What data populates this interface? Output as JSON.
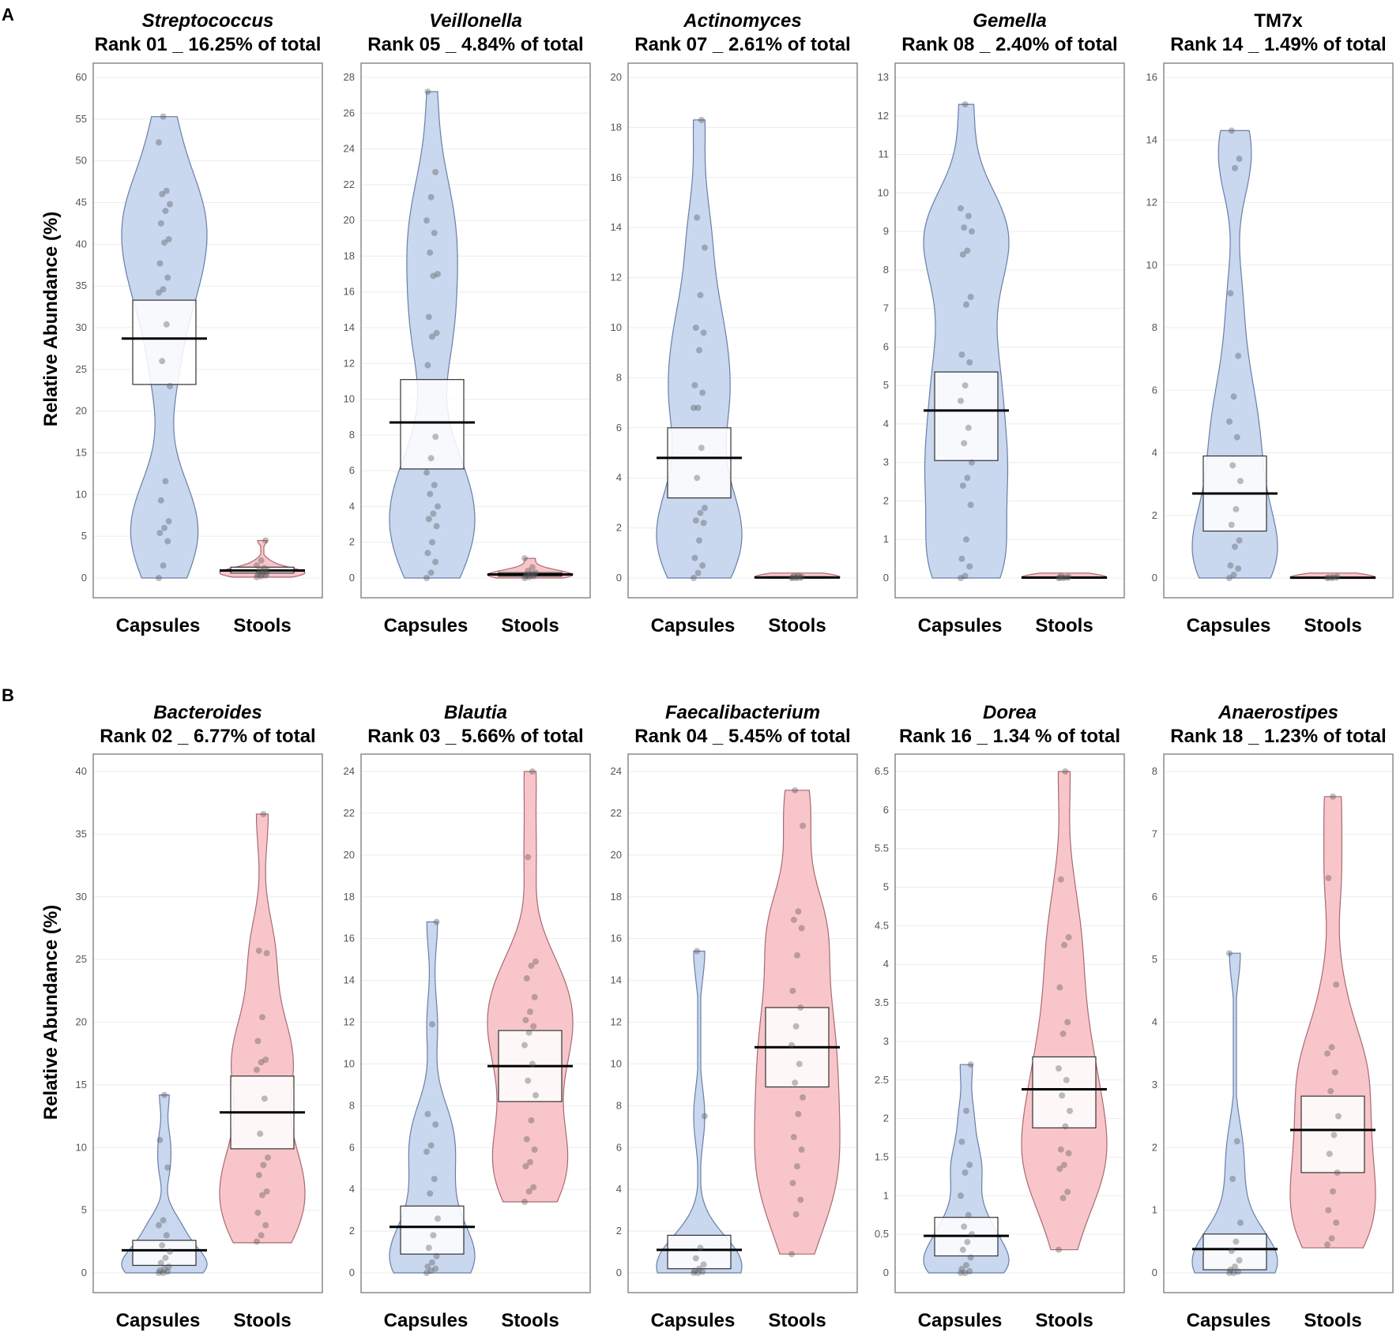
{
  "colors": {
    "capsules_fill": "#c6d5ee",
    "capsules_stroke": "#6a7fa8",
    "stools_fill": "#f8c3c7",
    "stools_stroke": "#a86a72",
    "box_fill": "#ffffff",
    "grid": "#ececec",
    "frame": "#8a8a8a",
    "dot": "#555555"
  },
  "y_axis_label": "Relative Abundance (%)",
  "chart_data": [
    {
      "panel": "A",
      "type": "violin-box",
      "genus": "Streptococcus",
      "italic": true,
      "subtitle": "Rank 01 _ 16.25% of total",
      "ylim": [
        0,
        60
      ],
      "ticks": [
        0,
        5,
        10,
        15,
        20,
        25,
        30,
        35,
        40,
        45,
        50,
        55,
        60
      ],
      "categories": [
        "Capsules",
        "Stools"
      ],
      "series": [
        {
          "name": "Capsules",
          "min": 0,
          "max": 55.3,
          "q1": 23.2,
          "median": 28.7,
          "q3": 33.3,
          "points": [
            0,
            1.5,
            4.4,
            5.4,
            6.0,
            6.8,
            9.3,
            11.6,
            23,
            26,
            30.4,
            34.2,
            34.6,
            36.0,
            37.7,
            40.2,
            40.6,
            42.5,
            44.0,
            44.8,
            46.0,
            46.4,
            52.2,
            55.3
          ]
        },
        {
          "name": "Stools",
          "min": 0.1,
          "max": 4.5,
          "q1": 0.6,
          "median": 0.9,
          "q3": 1.3,
          "points": [
            0.1,
            0.2,
            0.3,
            0.4,
            0.5,
            0.6,
            0.7,
            0.8,
            0.9,
            1.0,
            1.2,
            1.5,
            2.1,
            4.5
          ]
        }
      ]
    },
    {
      "panel": "A",
      "type": "violin-box",
      "genus": "Veillonella",
      "italic": true,
      "subtitle": "Rank 05 _ 4.84% of total",
      "ylim": [
        0,
        28
      ],
      "ticks": [
        0,
        2,
        4,
        6,
        8,
        10,
        12,
        14,
        16,
        18,
        20,
        22,
        24,
        26,
        28
      ],
      "categories": [
        "Capsules",
        "Stools"
      ],
      "series": [
        {
          "name": "Capsules",
          "min": 0,
          "max": 27.2,
          "q1": 6.1,
          "median": 8.7,
          "q3": 11.1,
          "points": [
            0,
            0.3,
            0.9,
            1.4,
            2.0,
            2.9,
            3.3,
            3.6,
            4.0,
            4.7,
            5.2,
            5.9,
            6.7,
            7.9,
            11.9,
            13.5,
            13.7,
            14.6,
            16.9,
            17.0,
            18.2,
            19.3,
            20.0,
            21.3,
            22.7,
            27.2
          ]
        },
        {
          "name": "Stools",
          "min": 0,
          "max": 1.1,
          "q1": 0.1,
          "median": 0.2,
          "q3": 0.3,
          "points": [
            0,
            0.05,
            0.1,
            0.1,
            0.15,
            0.2,
            0.2,
            0.25,
            0.3,
            0.4,
            0.6,
            1.1
          ]
        }
      ]
    },
    {
      "panel": "A",
      "type": "violin-box",
      "genus": "Actinomyces",
      "italic": true,
      "subtitle": "Rank 07 _ 2.61% of total",
      "ylim": [
        0,
        20
      ],
      "ticks": [
        0,
        2,
        4,
        6,
        8,
        10,
        12,
        14,
        16,
        18,
        20
      ],
      "categories": [
        "Capsules",
        "Stools"
      ],
      "series": [
        {
          "name": "Capsules",
          "min": 0,
          "max": 18.3,
          "q1": 3.2,
          "median": 4.8,
          "q3": 6.0,
          "points": [
            0,
            0.2,
            0.5,
            0.8,
            1.5,
            2.2,
            2.3,
            2.6,
            2.8,
            4.0,
            5.2,
            6.8,
            6.8,
            7.4,
            7.7,
            9.1,
            9.8,
            10.0,
            11.3,
            13.2,
            14.4,
            18.3
          ]
        },
        {
          "name": "Stools",
          "min": 0,
          "max": 0.1,
          "q1": 0,
          "median": 0.02,
          "q3": 0.05,
          "points": [
            0,
            0,
            0.01,
            0.02,
            0.03,
            0.05,
            0.08,
            0.1
          ]
        }
      ]
    },
    {
      "panel": "A",
      "type": "violin-box",
      "genus": "Gemella",
      "italic": true,
      "subtitle": "Rank 08 _ 2.40% of total",
      "ylim": [
        0,
        13
      ],
      "ticks": [
        0,
        1,
        2,
        3,
        4,
        5,
        6,
        7,
        8,
        9,
        10,
        11,
        12,
        13
      ],
      "categories": [
        "Capsules",
        "Stools"
      ],
      "series": [
        {
          "name": "Capsules",
          "min": 0,
          "max": 12.3,
          "q1": 3.05,
          "median": 4.35,
          "q3": 5.35,
          "points": [
            0,
            0.05,
            0.3,
            0.5,
            1.0,
            1.9,
            2.4,
            2.6,
            3.0,
            3.5,
            3.9,
            4.6,
            5.0,
            5.6,
            5.8,
            7.1,
            7.3,
            8.4,
            8.5,
            9.0,
            9.1,
            9.4,
            9.6,
            12.3
          ]
        },
        {
          "name": "Stools",
          "min": 0,
          "max": 0.05,
          "q1": 0,
          "median": 0.01,
          "q3": 0.02,
          "points": [
            0,
            0,
            0.01,
            0.01,
            0.02,
            0.03,
            0.05
          ]
        }
      ]
    },
    {
      "panel": "A",
      "type": "violin-box",
      "genus": "TM7x",
      "italic": false,
      "subtitle": "Rank 14 _ 1.49% of total",
      "ylim": [
        0,
        16
      ],
      "ticks": [
        0,
        2,
        4,
        6,
        8,
        10,
        12,
        14,
        16
      ],
      "categories": [
        "Capsules",
        "Stools"
      ],
      "series": [
        {
          "name": "Capsules",
          "min": 0,
          "max": 14.3,
          "q1": 1.5,
          "median": 2.7,
          "q3": 3.9,
          "points": [
            0,
            0.1,
            0.3,
            0.4,
            1.0,
            1.2,
            1.7,
            2.2,
            3.1,
            3.6,
            4.5,
            5.0,
            5.8,
            7.1,
            9.1,
            13.1,
            13.4,
            14.3
          ]
        },
        {
          "name": "Stools",
          "min": 0,
          "max": 0.05,
          "q1": 0,
          "median": 0.01,
          "q3": 0.02,
          "points": [
            0,
            0,
            0.01,
            0.02,
            0.03,
            0.05
          ]
        }
      ]
    },
    {
      "panel": "B",
      "type": "violin-box",
      "genus": "Bacteroides",
      "italic": true,
      "subtitle": "Rank 02 _ 6.77% of total",
      "ylim": [
        0,
        40
      ],
      "ticks": [
        0,
        5,
        10,
        15,
        20,
        25,
        30,
        35,
        40
      ],
      "categories": [
        "Capsules",
        "Stools"
      ],
      "series": [
        {
          "name": "Capsules",
          "min": 0,
          "max": 14.2,
          "q1": 0.6,
          "median": 1.8,
          "q3": 2.6,
          "points": [
            0,
            0,
            0.1,
            0.2,
            0.3,
            0.5,
            0.8,
            1.2,
            1.7,
            2.2,
            3.0,
            3.8,
            4.2,
            8.4,
            10.6,
            14.2
          ]
        },
        {
          "name": "Stools",
          "min": 2.4,
          "max": 36.6,
          "q1": 9.9,
          "median": 12.8,
          "q3": 15.7,
          "points": [
            2.5,
            3.0,
            3.8,
            4.8,
            6.2,
            6.5,
            7.8,
            8.6,
            9.2,
            11.1,
            13.9,
            16.2,
            16.8,
            17.0,
            18.5,
            20.4,
            25.5,
            25.7,
            36.6
          ]
        }
      ]
    },
    {
      "panel": "B",
      "type": "violin-box",
      "genus": "Blautia",
      "italic": true,
      "subtitle": "Rank 03 _ 5.66% of total",
      "ylim": [
        0,
        24
      ],
      "ticks": [
        0,
        2,
        4,
        6,
        8,
        10,
        12,
        14,
        16,
        18,
        20,
        22,
        24
      ],
      "categories": [
        "Capsules",
        "Stools"
      ],
      "series": [
        {
          "name": "Capsules",
          "min": 0,
          "max": 16.8,
          "q1": 0.9,
          "median": 2.2,
          "q3": 3.2,
          "points": [
            0,
            0.1,
            0.2,
            0.3,
            0.5,
            0.8,
            1.2,
            1.8,
            2.6,
            3.8,
            4.5,
            5.8,
            6.1,
            7.1,
            7.6,
            11.9,
            16.8
          ]
        },
        {
          "name": "Stools",
          "min": 3.4,
          "max": 24.0,
          "q1": 8.2,
          "median": 9.9,
          "q3": 11.6,
          "points": [
            3.4,
            3.9,
            4.1,
            5.1,
            5.3,
            5.9,
            6.4,
            7.3,
            8.5,
            9.2,
            10.0,
            10.9,
            11.5,
            11.8,
            12.1,
            12.5,
            13.2,
            14.1,
            14.7,
            14.9,
            19.9,
            24.0
          ]
        }
      ]
    },
    {
      "panel": "B",
      "type": "violin-box",
      "genus": "Faecalibacterium",
      "italic": true,
      "subtitle": "Rank 04 _ 5.45% of total",
      "ylim": [
        0,
        24
      ],
      "ticks": [
        0,
        2,
        4,
        6,
        8,
        10,
        12,
        14,
        16,
        18,
        20,
        22,
        24
      ],
      "categories": [
        "Capsules",
        "Stools"
      ],
      "series": [
        {
          "name": "Capsules",
          "min": 0,
          "max": 15.4,
          "q1": 0.2,
          "median": 1.1,
          "q3": 1.8,
          "points": [
            0,
            0,
            0.05,
            0.1,
            0.2,
            0.4,
            0.7,
            1.2,
            7.5,
            15.4
          ]
        },
        {
          "name": "Stools",
          "min": 0.9,
          "max": 23.1,
          "q1": 8.9,
          "median": 10.8,
          "q3": 12.7,
          "points": [
            0.9,
            2.8,
            3.5,
            4.3,
            5.1,
            5.9,
            6.5,
            7.6,
            8.4,
            9.1,
            10.0,
            10.9,
            11.8,
            12.7,
            13.5,
            15.2,
            16.5,
            16.9,
            17.3,
            21.4,
            23.1
          ]
        }
      ]
    },
    {
      "panel": "B",
      "type": "violin-box",
      "genus": "Dorea",
      "italic": true,
      "subtitle": "Rank 16 _ 1.34 % of total",
      "ylim": [
        0,
        6.5
      ],
      "ticks": [
        0,
        0.5,
        1,
        1.5,
        2,
        2.5,
        3,
        3.5,
        4,
        4.5,
        5,
        5.5,
        6,
        6.5
      ],
      "categories": [
        "Capsules",
        "Stools"
      ],
      "series": [
        {
          "name": "Capsules",
          "min": 0,
          "max": 2.7,
          "q1": 0.22,
          "median": 0.48,
          "q3": 0.72,
          "points": [
            0,
            0,
            0.02,
            0.05,
            0.1,
            0.2,
            0.3,
            0.4,
            0.5,
            0.6,
            0.75,
            1.0,
            1.3,
            1.4,
            1.7,
            2.1,
            2.7
          ]
        },
        {
          "name": "Stools",
          "min": 0.3,
          "max": 6.5,
          "q1": 1.88,
          "median": 2.38,
          "q3": 2.8,
          "points": [
            0.3,
            0.97,
            1.05,
            1.35,
            1.4,
            1.55,
            1.6,
            1.9,
            2.1,
            2.3,
            2.5,
            2.65,
            3.1,
            3.25,
            3.7,
            4.25,
            4.35,
            5.1,
            6.5
          ]
        }
      ]
    },
    {
      "panel": "B",
      "type": "violin-box",
      "genus": "Anaerostipes",
      "italic": true,
      "subtitle": "Rank 18 _ 1.23% of total",
      "ylim": [
        0,
        8
      ],
      "ticks": [
        0,
        1,
        2,
        3,
        4,
        5,
        6,
        7,
        8
      ],
      "categories": [
        "Capsules",
        "Stools"
      ],
      "series": [
        {
          "name": "Capsules",
          "min": 0,
          "max": 5.1,
          "q1": 0.05,
          "median": 0.38,
          "q3": 0.62,
          "points": [
            0,
            0,
            0.02,
            0.05,
            0.1,
            0.2,
            0.35,
            0.5,
            0.8,
            1.5,
            2.1,
            5.1
          ]
        },
        {
          "name": "Stools",
          "min": 0.4,
          "max": 7.6,
          "q1": 1.6,
          "median": 2.28,
          "q3": 2.82,
          "points": [
            0.45,
            0.55,
            0.8,
            1.0,
            1.3,
            1.6,
            1.9,
            2.2,
            2.5,
            2.9,
            3.2,
            3.5,
            3.6,
            4.6,
            6.3,
            7.6
          ]
        }
      ]
    }
  ]
}
